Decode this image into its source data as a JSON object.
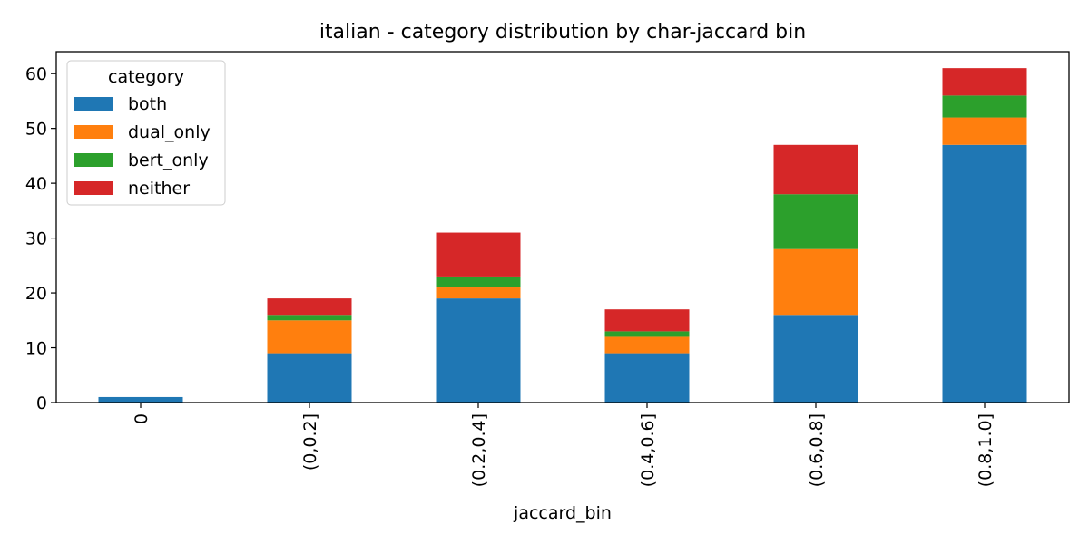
{
  "chart_data": {
    "type": "bar",
    "stacked": true,
    "title": "italian - category distribution by char-jaccard bin",
    "xlabel": "jaccard_bin",
    "ylabel": "",
    "ylim": [
      0,
      64
    ],
    "yticks": [
      0,
      10,
      20,
      30,
      40,
      50,
      60
    ],
    "categories": [
      "0",
      "(0,0.2]",
      "(0.2,0.4]",
      "(0.4,0.6]",
      "(0.6,0.8]",
      "(0.8,1.0]"
    ],
    "legend": {
      "title": "category",
      "placement": "upper-left"
    },
    "series": [
      {
        "name": "both",
        "color": "#1f77b4",
        "values": [
          1,
          9,
          19,
          9,
          16,
          47
        ]
      },
      {
        "name": "dual_only",
        "color": "#ff7f0e",
        "values": [
          0,
          6,
          2,
          3,
          12,
          5
        ]
      },
      {
        "name": "bert_only",
        "color": "#2ca02c",
        "values": [
          0,
          1,
          2,
          1,
          10,
          4
        ]
      },
      {
        "name": "neither",
        "color": "#d62728",
        "values": [
          0,
          3,
          8,
          4,
          9,
          5
        ]
      }
    ],
    "grid": false
  }
}
